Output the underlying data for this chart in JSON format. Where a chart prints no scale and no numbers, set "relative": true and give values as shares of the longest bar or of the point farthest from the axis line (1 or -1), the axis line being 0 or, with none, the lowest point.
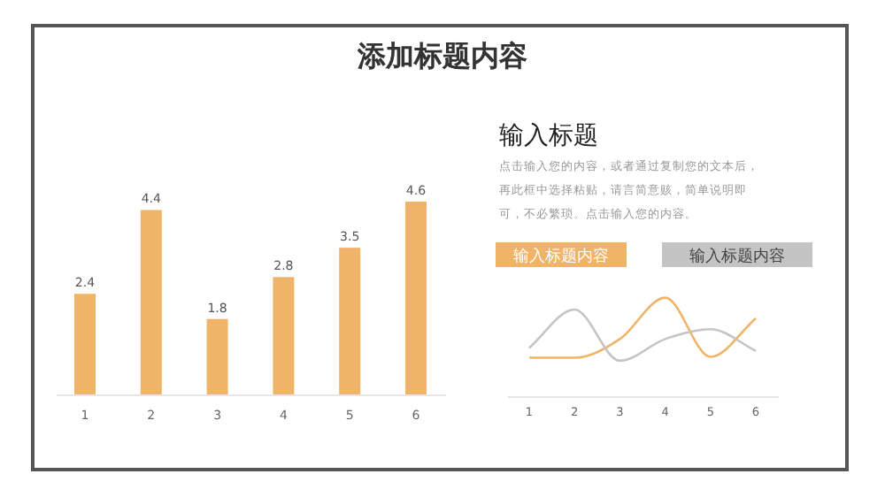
{
  "chart_data": [
    {
      "type": "other",
      "title": "添加标题内容"
    },
    {
      "type": "bar",
      "categories": [
        "1",
        "2",
        "3",
        "4",
        "5",
        "6"
      ],
      "values": [
        2.4,
        4.4,
        1.8,
        2.8,
        3.5,
        4.6
      ],
      "color": "#f0b468",
      "data_labels": true
    },
    {
      "type": "other",
      "title": "输入标题",
      "annotations": [
        "点击输入您的内容，或者通过复制您的文本后，",
        "再此框中选择粘贴，请言简意赅，简单说明即",
        "可，不必繁琐。点击输入您的内容。"
      ]
    },
    {
      "type": "line",
      "relative": true,
      "categories": [
        "1",
        "2",
        "3",
        "4",
        "5",
        "6"
      ],
      "legend": "top",
      "series": [
        {
          "name": "输入标题内容",
          "color": "#f0b468",
          "values": [
            0.39,
            0.39,
            0.58,
            1,
            0.4,
            0.79
          ]
        },
        {
          "name": "输入标题内容",
          "color": "#c4c4c4",
          "values": [
            0.49,
            0.88,
            0.36,
            0.58,
            0.68,
            0.46
          ]
        }
      ]
    }
  ]
}
